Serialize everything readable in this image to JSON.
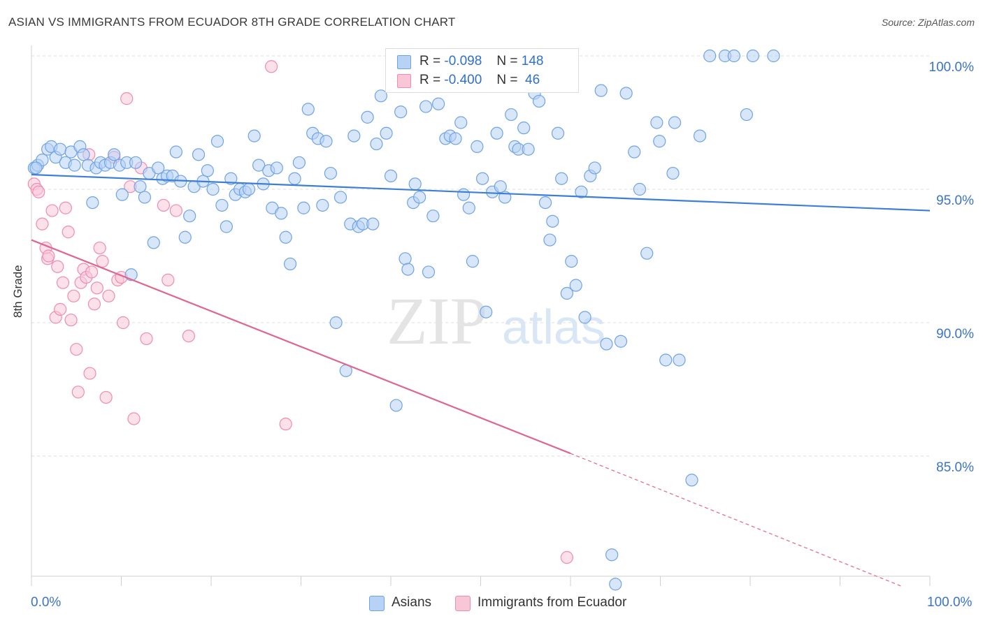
{
  "title": "ASIAN VS IMMIGRANTS FROM ECUADOR 8TH GRADE CORRELATION CHART",
  "source": "Source: ZipAtlas.com",
  "watermark": {
    "zip": "ZIP",
    "atlas": "atlas"
  },
  "legend_top": [
    {
      "r_label": "R =",
      "r_value": "-0.098",
      "n_label": "N =",
      "n_value": "148",
      "color": "#6fa3e8",
      "fill": "#b8d2f5"
    },
    {
      "r_label": "R =",
      "r_value": "-0.400",
      "n_label": "N =",
      "n_value": " 46",
      "color": "#f08cb0",
      "fill": "#f9c6d8"
    }
  ],
  "bottom_legend": [
    {
      "label": "Asians",
      "color": "#6fa3e8",
      "fill": "#b8d2f5"
    },
    {
      "label": "Immigrants from Ecuador",
      "color": "#f08cb0",
      "fill": "#f9c6d8"
    }
  ],
  "axis": {
    "ylabel": "8th Grade",
    "x_min_label": "0.0%",
    "x_max_label": "100.0%",
    "y_ticks": [
      {
        "value": 100,
        "label": "100.0%"
      },
      {
        "value": 95,
        "label": "95.0%"
      },
      {
        "value": 90,
        "label": "90.0%"
      },
      {
        "value": 85,
        "label": "85.0%"
      }
    ]
  },
  "chart_data": {
    "type": "scatter",
    "title": "ASIAN VS IMMIGRANTS FROM ECUADOR 8TH GRADE CORRELATION CHART",
    "xlabel": "",
    "ylabel": "8th Grade",
    "xlim": [
      0,
      100
    ],
    "ylim": [
      80,
      100.5
    ],
    "series": [
      {
        "name": "Asians",
        "color": "#3d7fd6",
        "fill": "#b8d2f5",
        "stroke": "#6fa3e8",
        "trend": {
          "x0": 0,
          "y0": 95.55,
          "x1": 100,
          "y1": 94.2
        },
        "points": [
          [
            0.3,
            95.8
          ],
          [
            0.7,
            95.9
          ],
          [
            1.2,
            96.1
          ],
          [
            1.8,
            96.5
          ],
          [
            2.2,
            96.6
          ],
          [
            2.7,
            96.2
          ],
          [
            3.2,
            96.5
          ],
          [
            3.8,
            96.0
          ],
          [
            4.4,
            96.4
          ],
          [
            4.8,
            95.9
          ],
          [
            5.4,
            96.6
          ],
          [
            5.8,
            96.3
          ],
          [
            6.3,
            95.9
          ],
          [
            6.8,
            94.5
          ],
          [
            7.2,
            95.8
          ],
          [
            7.7,
            96.0
          ],
          [
            8.2,
            95.9
          ],
          [
            8.8,
            96.0
          ],
          [
            9.2,
            96.3
          ],
          [
            9.8,
            95.9
          ],
          [
            10.1,
            94.8
          ],
          [
            10.6,
            96.0
          ],
          [
            11.1,
            91.8
          ],
          [
            11.6,
            96.0
          ],
          [
            12.1,
            95.1
          ],
          [
            12.6,
            94.7
          ],
          [
            13.1,
            95.6
          ],
          [
            13.6,
            93.0
          ],
          [
            14.1,
            95.8
          ],
          [
            14.6,
            95.4
          ],
          [
            15.1,
            95.5
          ],
          [
            15.7,
            95.5
          ],
          [
            16.1,
            96.4
          ],
          [
            16.6,
            95.3
          ],
          [
            17.1,
            93.2
          ],
          [
            17.6,
            94.0
          ],
          [
            18.1,
            95.1
          ],
          [
            18.6,
            96.3
          ],
          [
            19.1,
            95.3
          ],
          [
            19.6,
            95.7
          ],
          [
            20.2,
            95.0
          ],
          [
            20.7,
            96.8
          ],
          [
            21.2,
            94.4
          ],
          [
            21.7,
            93.6
          ],
          [
            22.2,
            95.4
          ],
          [
            22.7,
            94.8
          ],
          [
            23.2,
            95.0
          ],
          [
            23.8,
            94.9
          ],
          [
            24.2,
            95.0
          ],
          [
            24.8,
            97.0
          ],
          [
            25.3,
            95.9
          ],
          [
            25.8,
            95.2
          ],
          [
            26.4,
            95.7
          ],
          [
            26.8,
            94.3
          ],
          [
            27.3,
            95.8
          ],
          [
            27.8,
            94.1
          ],
          [
            28.3,
            93.2
          ],
          [
            28.8,
            92.2
          ],
          [
            29.3,
            95.4
          ],
          [
            29.8,
            96.0
          ],
          [
            30.3,
            94.3
          ],
          [
            30.8,
            98.0
          ],
          [
            31.3,
            97.1
          ],
          [
            31.9,
            96.9
          ],
          [
            32.4,
            94.4
          ],
          [
            32.8,
            96.8
          ],
          [
            33.3,
            95.6
          ],
          [
            33.9,
            90.0
          ],
          [
            34.4,
            94.7
          ],
          [
            35.0,
            88.2
          ],
          [
            35.5,
            93.7
          ],
          [
            35.9,
            97.0
          ],
          [
            36.4,
            93.6
          ],
          [
            36.9,
            93.7
          ],
          [
            37.4,
            97.7
          ],
          [
            38.0,
            93.7
          ],
          [
            38.4,
            96.7
          ],
          [
            38.9,
            98.5
          ],
          [
            39.5,
            97.1
          ],
          [
            40.0,
            95.5
          ],
          [
            40.6,
            86.9
          ],
          [
            41.1,
            97.9
          ],
          [
            41.6,
            92.4
          ],
          [
            41.9,
            92.0
          ],
          [
            42.5,
            94.5
          ],
          [
            42.7,
            95.2
          ],
          [
            43.2,
            94.7
          ],
          [
            43.9,
            98.1
          ],
          [
            44.2,
            91.9
          ],
          [
            44.7,
            94.0
          ],
          [
            45.3,
            98.2
          ],
          [
            46.1,
            96.9
          ],
          [
            46.6,
            97.0
          ],
          [
            47.2,
            96.9
          ],
          [
            47.8,
            97.5
          ],
          [
            48.1,
            94.8
          ],
          [
            48.7,
            94.3
          ],
          [
            49.1,
            92.3
          ],
          [
            49.6,
            96.6
          ],
          [
            50.2,
            95.4
          ],
          [
            50.6,
            90.4
          ],
          [
            51.3,
            94.9
          ],
          [
            51.8,
            97.1
          ],
          [
            52.2,
            95.1
          ],
          [
            52.7,
            94.7
          ],
          [
            53.4,
            97.8
          ],
          [
            53.8,
            96.6
          ],
          [
            54.2,
            96.5
          ],
          [
            54.8,
            97.3
          ],
          [
            55.3,
            96.5
          ],
          [
            56.0,
            98.6
          ],
          [
            56.5,
            98.3
          ],
          [
            57.2,
            94.5
          ],
          [
            57.7,
            93.1
          ],
          [
            58.0,
            93.8
          ],
          [
            58.6,
            97.1
          ],
          [
            59.0,
            95.4
          ],
          [
            59.6,
            91.1
          ],
          [
            60.1,
            92.3
          ],
          [
            60.6,
            91.4
          ],
          [
            61.2,
            94.9
          ],
          [
            61.6,
            90.2
          ],
          [
            62.2,
            95.5
          ],
          [
            62.7,
            95.8
          ],
          [
            63.4,
            98.7
          ],
          [
            64.0,
            89.2
          ],
          [
            64.6,
            81.3
          ],
          [
            65.0,
            80.2
          ],
          [
            65.6,
            89.3
          ],
          [
            66.2,
            98.6
          ],
          [
            67.1,
            96.4
          ],
          [
            67.7,
            95.0
          ],
          [
            68.5,
            92.6
          ],
          [
            69.6,
            97.5
          ],
          [
            69.9,
            96.8
          ],
          [
            70.6,
            88.6
          ],
          [
            71.4,
            95.6
          ],
          [
            71.6,
            97.5
          ],
          [
            72.1,
            88.6
          ],
          [
            73.5,
            84.1
          ],
          [
            74.4,
            97.0
          ],
          [
            75.5,
            100.0
          ],
          [
            77.2,
            100.0
          ],
          [
            78.2,
            100.0
          ],
          [
            79.6,
            97.8
          ],
          [
            80.3,
            100.0
          ],
          [
            82.6,
            100.0
          ],
          [
            0.5,
            95.8
          ]
        ]
      },
      {
        "name": "Immigrants from Ecuador",
        "color": "#e0668f",
        "fill": "#f9c6d8",
        "stroke": "#f08cb0",
        "trend": {
          "x0": 0,
          "y0": 93.1,
          "x1": 60,
          "y1": 85.1,
          "dash_x1": 97,
          "dash_y1": 80.1
        },
        "points": [
          [
            0.3,
            95.2
          ],
          [
            0.6,
            95.0
          ],
          [
            0.8,
            94.9
          ],
          [
            1.2,
            93.7
          ],
          [
            1.6,
            92.8
          ],
          [
            1.8,
            92.4
          ],
          [
            2.3,
            94.2
          ],
          [
            2.7,
            90.2
          ],
          [
            2.9,
            92.1
          ],
          [
            3.2,
            90.5
          ],
          [
            3.5,
            91.5
          ],
          [
            3.8,
            94.3
          ],
          [
            4.1,
            93.4
          ],
          [
            4.4,
            90.1
          ],
          [
            4.7,
            91.0
          ],
          [
            5.0,
            89.0
          ],
          [
            5.2,
            87.4
          ],
          [
            5.5,
            91.5
          ],
          [
            5.8,
            92.0
          ],
          [
            6.1,
            91.7
          ],
          [
            6.5,
            88.1
          ],
          [
            6.7,
            91.9
          ],
          [
            7.0,
            90.7
          ],
          [
            7.3,
            91.3
          ],
          [
            7.6,
            92.8
          ],
          [
            7.9,
            92.3
          ],
          [
            8.3,
            87.2
          ],
          [
            8.6,
            91.0
          ],
          [
            9.2,
            96.2
          ],
          [
            9.6,
            91.6
          ],
          [
            10.2,
            90.0
          ],
          [
            10.6,
            98.4
          ],
          [
            11.0,
            95.1
          ],
          [
            11.4,
            86.4
          ],
          [
            12.2,
            95.8
          ],
          [
            12.8,
            89.4
          ],
          [
            14.7,
            94.4
          ],
          [
            15.2,
            91.6
          ],
          [
            16.1,
            94.2
          ],
          [
            17.5,
            89.5
          ],
          [
            26.7,
            99.6
          ],
          [
            28.3,
            86.2
          ],
          [
            59.6,
            81.2
          ],
          [
            6.4,
            96.3
          ],
          [
            10.0,
            91.7
          ],
          [
            1.9,
            92.5
          ]
        ]
      }
    ]
  }
}
